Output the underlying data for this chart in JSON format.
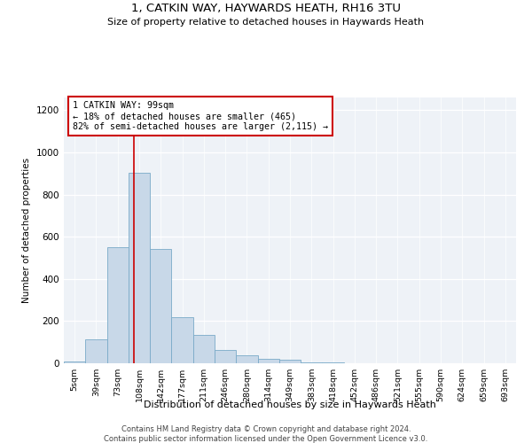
{
  "title_line1": "1, CATKIN WAY, HAYWARDS HEATH, RH16 3TU",
  "title_line2": "Size of property relative to detached houses in Haywards Heath",
  "xlabel": "Distribution of detached houses by size in Haywards Heath",
  "ylabel": "Number of detached properties",
  "bar_color": "#c8d8e8",
  "bar_edge_color": "#7aaac8",
  "categories": [
    "5sqm",
    "39sqm",
    "73sqm",
    "108sqm",
    "142sqm",
    "177sqm",
    "211sqm",
    "246sqm",
    "280sqm",
    "314sqm",
    "349sqm",
    "383sqm",
    "418sqm",
    "452sqm",
    "486sqm",
    "521sqm",
    "555sqm",
    "590sqm",
    "624sqm",
    "659sqm",
    "693sqm"
  ],
  "values": [
    8,
    113,
    550,
    905,
    543,
    220,
    135,
    62,
    38,
    22,
    15,
    5,
    3,
    0,
    0,
    0,
    0,
    0,
    0,
    0,
    0
  ],
  "vline_x": 2.75,
  "vline_color": "#cc0000",
  "annotation_text": "1 CATKIN WAY: 99sqm\n← 18% of detached houses are smaller (465)\n82% of semi-detached houses are larger (2,115) →",
  "annotation_box_color": "#ffffff",
  "annotation_box_edge": "#cc0000",
  "ylim": [
    0,
    1260
  ],
  "yticks": [
    0,
    200,
    400,
    600,
    800,
    1000,
    1200
  ],
  "background_color": "#eef2f7",
  "footer_line1": "Contains HM Land Registry data © Crown copyright and database right 2024.",
  "footer_line2": "Contains public sector information licensed under the Open Government Licence v3.0."
}
